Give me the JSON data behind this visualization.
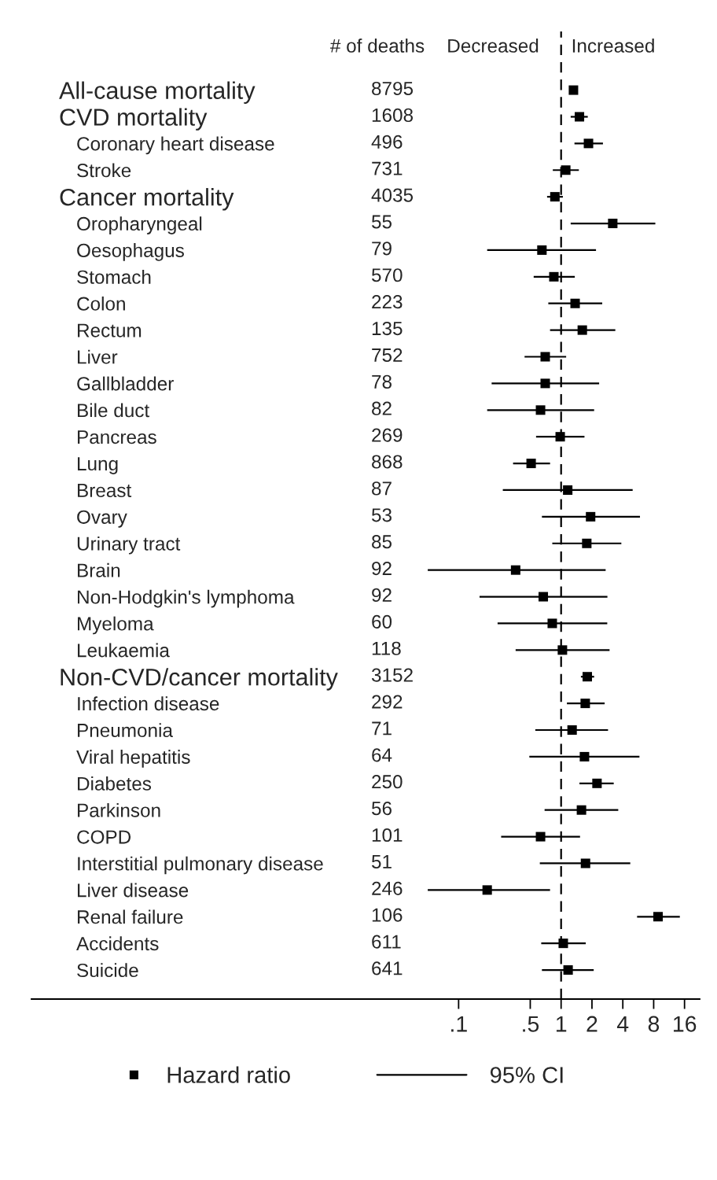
{
  "chart_data": {
    "type": "scatter",
    "orientation": "horizontal",
    "log": "x",
    "marker": "square",
    "categories": [
      "All-cause mortality",
      "CVD mortality",
      "Coronary heart disease",
      "Stroke",
      "Cancer mortality",
      "Oropharyngeal",
      "Oesophagus",
      "Stomach",
      "Colon",
      "Rectum",
      "Liver",
      "Gallbladder",
      "Bile duct",
      "Pancreas",
      "Lung",
      "Breast",
      "Ovary",
      "Urinary tract",
      "Brain",
      "Non-Hodgkin's lymphoma",
      "Myeloma",
      "Leukaemia",
      "Non-CVD/cancer mortality",
      "Infection disease",
      "Pneumonia",
      "Viral hepatitis",
      "Diabetes",
      "Parkinson",
      "COPD",
      "Interstitial pulmonary disease",
      "Liver disease",
      "Renal failure",
      "Accidents",
      "Suicide"
    ],
    "series": [
      {
        "name": "Hazard ratio",
        "color": "#000000",
        "values": [
          1.32,
          1.51,
          1.85,
          1.11,
          0.87,
          3.19,
          0.65,
          0.85,
          1.37,
          1.61,
          0.7,
          0.7,
          0.63,
          0.98,
          0.51,
          1.16,
          1.94,
          1.78,
          0.36,
          0.67,
          0.82,
          1.03,
          1.8,
          1.72,
          1.28,
          1.69,
          2.24,
          1.58,
          0.63,
          1.73,
          0.19,
          8.83,
          1.05,
          1.17
        ],
        "errors": [
          [
            1.28,
            1.36
          ],
          [
            1.24,
            1.82
          ],
          [
            1.35,
            2.56
          ],
          [
            0.83,
            1.49
          ],
          [
            0.73,
            1.04
          ],
          [
            1.24,
            8.3
          ],
          [
            0.19,
            2.19
          ],
          [
            0.54,
            1.36
          ],
          [
            0.75,
            2.52
          ],
          [
            0.78,
            3.38
          ],
          [
            0.44,
            1.12
          ],
          [
            0.21,
            2.35
          ],
          [
            0.19,
            2.1
          ],
          [
            0.57,
            1.69
          ],
          [
            0.34,
            0.78
          ],
          [
            0.27,
            4.99
          ],
          [
            0.65,
            5.88
          ],
          [
            0.82,
            3.87
          ],
          [
            0.05,
            2.72
          ],
          [
            0.16,
            2.83
          ],
          [
            0.24,
            2.82
          ],
          [
            0.36,
            2.97
          ],
          [
            1.56,
            2.1
          ],
          [
            1.14,
            2.66
          ],
          [
            0.56,
            2.87
          ],
          [
            0.49,
            5.81
          ],
          [
            1.51,
            3.26
          ],
          [
            0.69,
            3.61
          ],
          [
            0.26,
            1.53
          ],
          [
            0.62,
            4.73
          ],
          [
            0.05,
            0.78
          ],
          [
            5.51,
            14.4
          ],
          [
            0.64,
            1.74
          ],
          [
            0.65,
            2.08
          ]
        ]
      }
    ],
    "xlim": [
      6.8e-06,
      22.5
    ],
    "xticks": [
      {
        "value": 0.1,
        "label": ".1"
      },
      {
        "value": 0.5,
        "label": ".5"
      },
      1,
      2,
      4,
      8,
      16
    ],
    "ref_lines": [
      {
        "axis": "x",
        "value": 1,
        "line_style": "dashed",
        "color": "#000000"
      }
    ],
    "legend": "bottom",
    "annotations": [
      "# of deaths",
      "Decreased",
      "Increased",
      "95% CI",
      "8795",
      "1608",
      "496",
      "731",
      "4035",
      "55",
      "79",
      "570",
      "223",
      "135",
      "752",
      "78",
      "82",
      "269",
      "868",
      "87",
      "53",
      "85",
      "92",
      "92",
      "60",
      "118",
      "3152",
      "292",
      "71",
      "64",
      "250",
      "56",
      "101",
      "51",
      "246",
      "106",
      "611",
      "641"
    ]
  }
}
